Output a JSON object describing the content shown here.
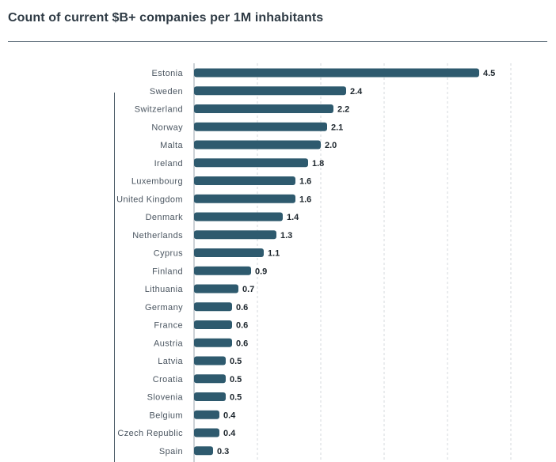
{
  "header": {
    "title": "Count of current $B+ companies per 1M inhabitants"
  },
  "colors": {
    "bar": "#2e5a6e",
    "grid": "#d4d8dc",
    "axis": "#9aa5ad"
  },
  "chart_data": {
    "type": "bar",
    "orientation": "horizontal",
    "title": "Count of current $B+ companies per 1M inhabitants",
    "xlabel": "",
    "ylabel": "",
    "xlim": [
      0,
      5
    ],
    "grid": true,
    "categories": [
      "Estonia",
      "Sweden",
      "Switzerland",
      "Norway",
      "Malta",
      "Ireland",
      "Luxembourg",
      "United Kingdom",
      "Denmark",
      "Netherlands",
      "Cyprus",
      "Finland",
      "Lithuania",
      "Germany",
      "France",
      "Austria",
      "Latvia",
      "Croatia",
      "Slovenia",
      "Belgium",
      "Czech Republic",
      "Spain"
    ],
    "values": [
      4.5,
      2.4,
      2.2,
      2.1,
      2.0,
      1.8,
      1.6,
      1.6,
      1.4,
      1.3,
      1.1,
      0.9,
      0.7,
      0.6,
      0.6,
      0.6,
      0.5,
      0.5,
      0.5,
      0.4,
      0.4,
      0.3
    ],
    "value_labels": [
      "4.5",
      "2.4",
      "2.2",
      "2.1",
      "2.0",
      "1.8",
      "1.6",
      "1.6",
      "1.4",
      "1.3",
      "1.1",
      "0.9",
      "0.7",
      "0.6",
      "0.6",
      "0.6",
      "0.5",
      "0.5",
      "0.5",
      "0.4",
      "0.4",
      "0.3"
    ]
  }
}
